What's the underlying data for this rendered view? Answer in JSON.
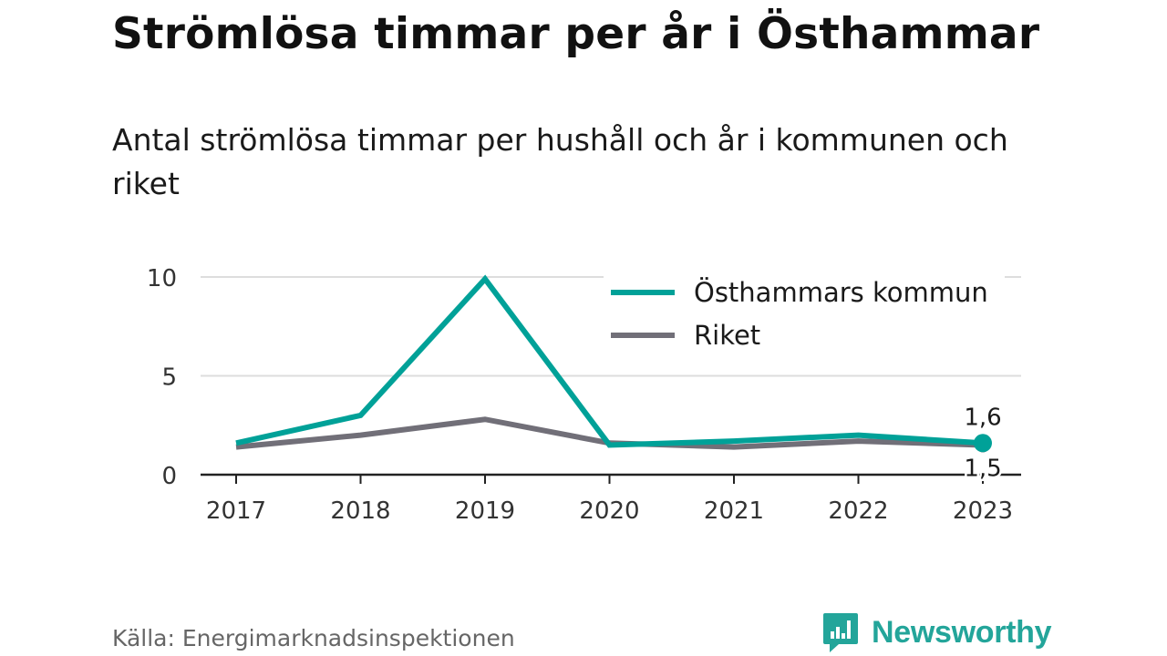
{
  "header": {
    "title": "Strömlösa timmar per år i Östhammar",
    "subtitle": "Antal strömlösa timmar per hushåll och år i kommunen och riket"
  },
  "footer": {
    "source": "Källa: Energimarknadsinspektionen",
    "brand": "Newsworthy"
  },
  "colors": {
    "kommun": "#00a198",
    "riket": "#716f78",
    "grid": "#dddddd",
    "axis": "#222222",
    "brand": "#23a59a"
  },
  "chart_data": {
    "type": "line",
    "x": [
      "2017",
      "2018",
      "2019",
      "2020",
      "2021",
      "2022",
      "2023"
    ],
    "yticks": [
      "0",
      "5",
      "10"
    ],
    "ylim": [
      0,
      10
    ],
    "grid": true,
    "legend_position": "top-right",
    "series": [
      {
        "name": "Östhammars kommun",
        "values": [
          1.6,
          3.0,
          9.9,
          1.5,
          1.7,
          2.0,
          1.6
        ],
        "end_label": "1,6"
      },
      {
        "name": "Riket",
        "values": [
          1.4,
          2.0,
          2.8,
          1.6,
          1.4,
          1.7,
          1.5
        ],
        "end_label": "1,5"
      }
    ]
  }
}
